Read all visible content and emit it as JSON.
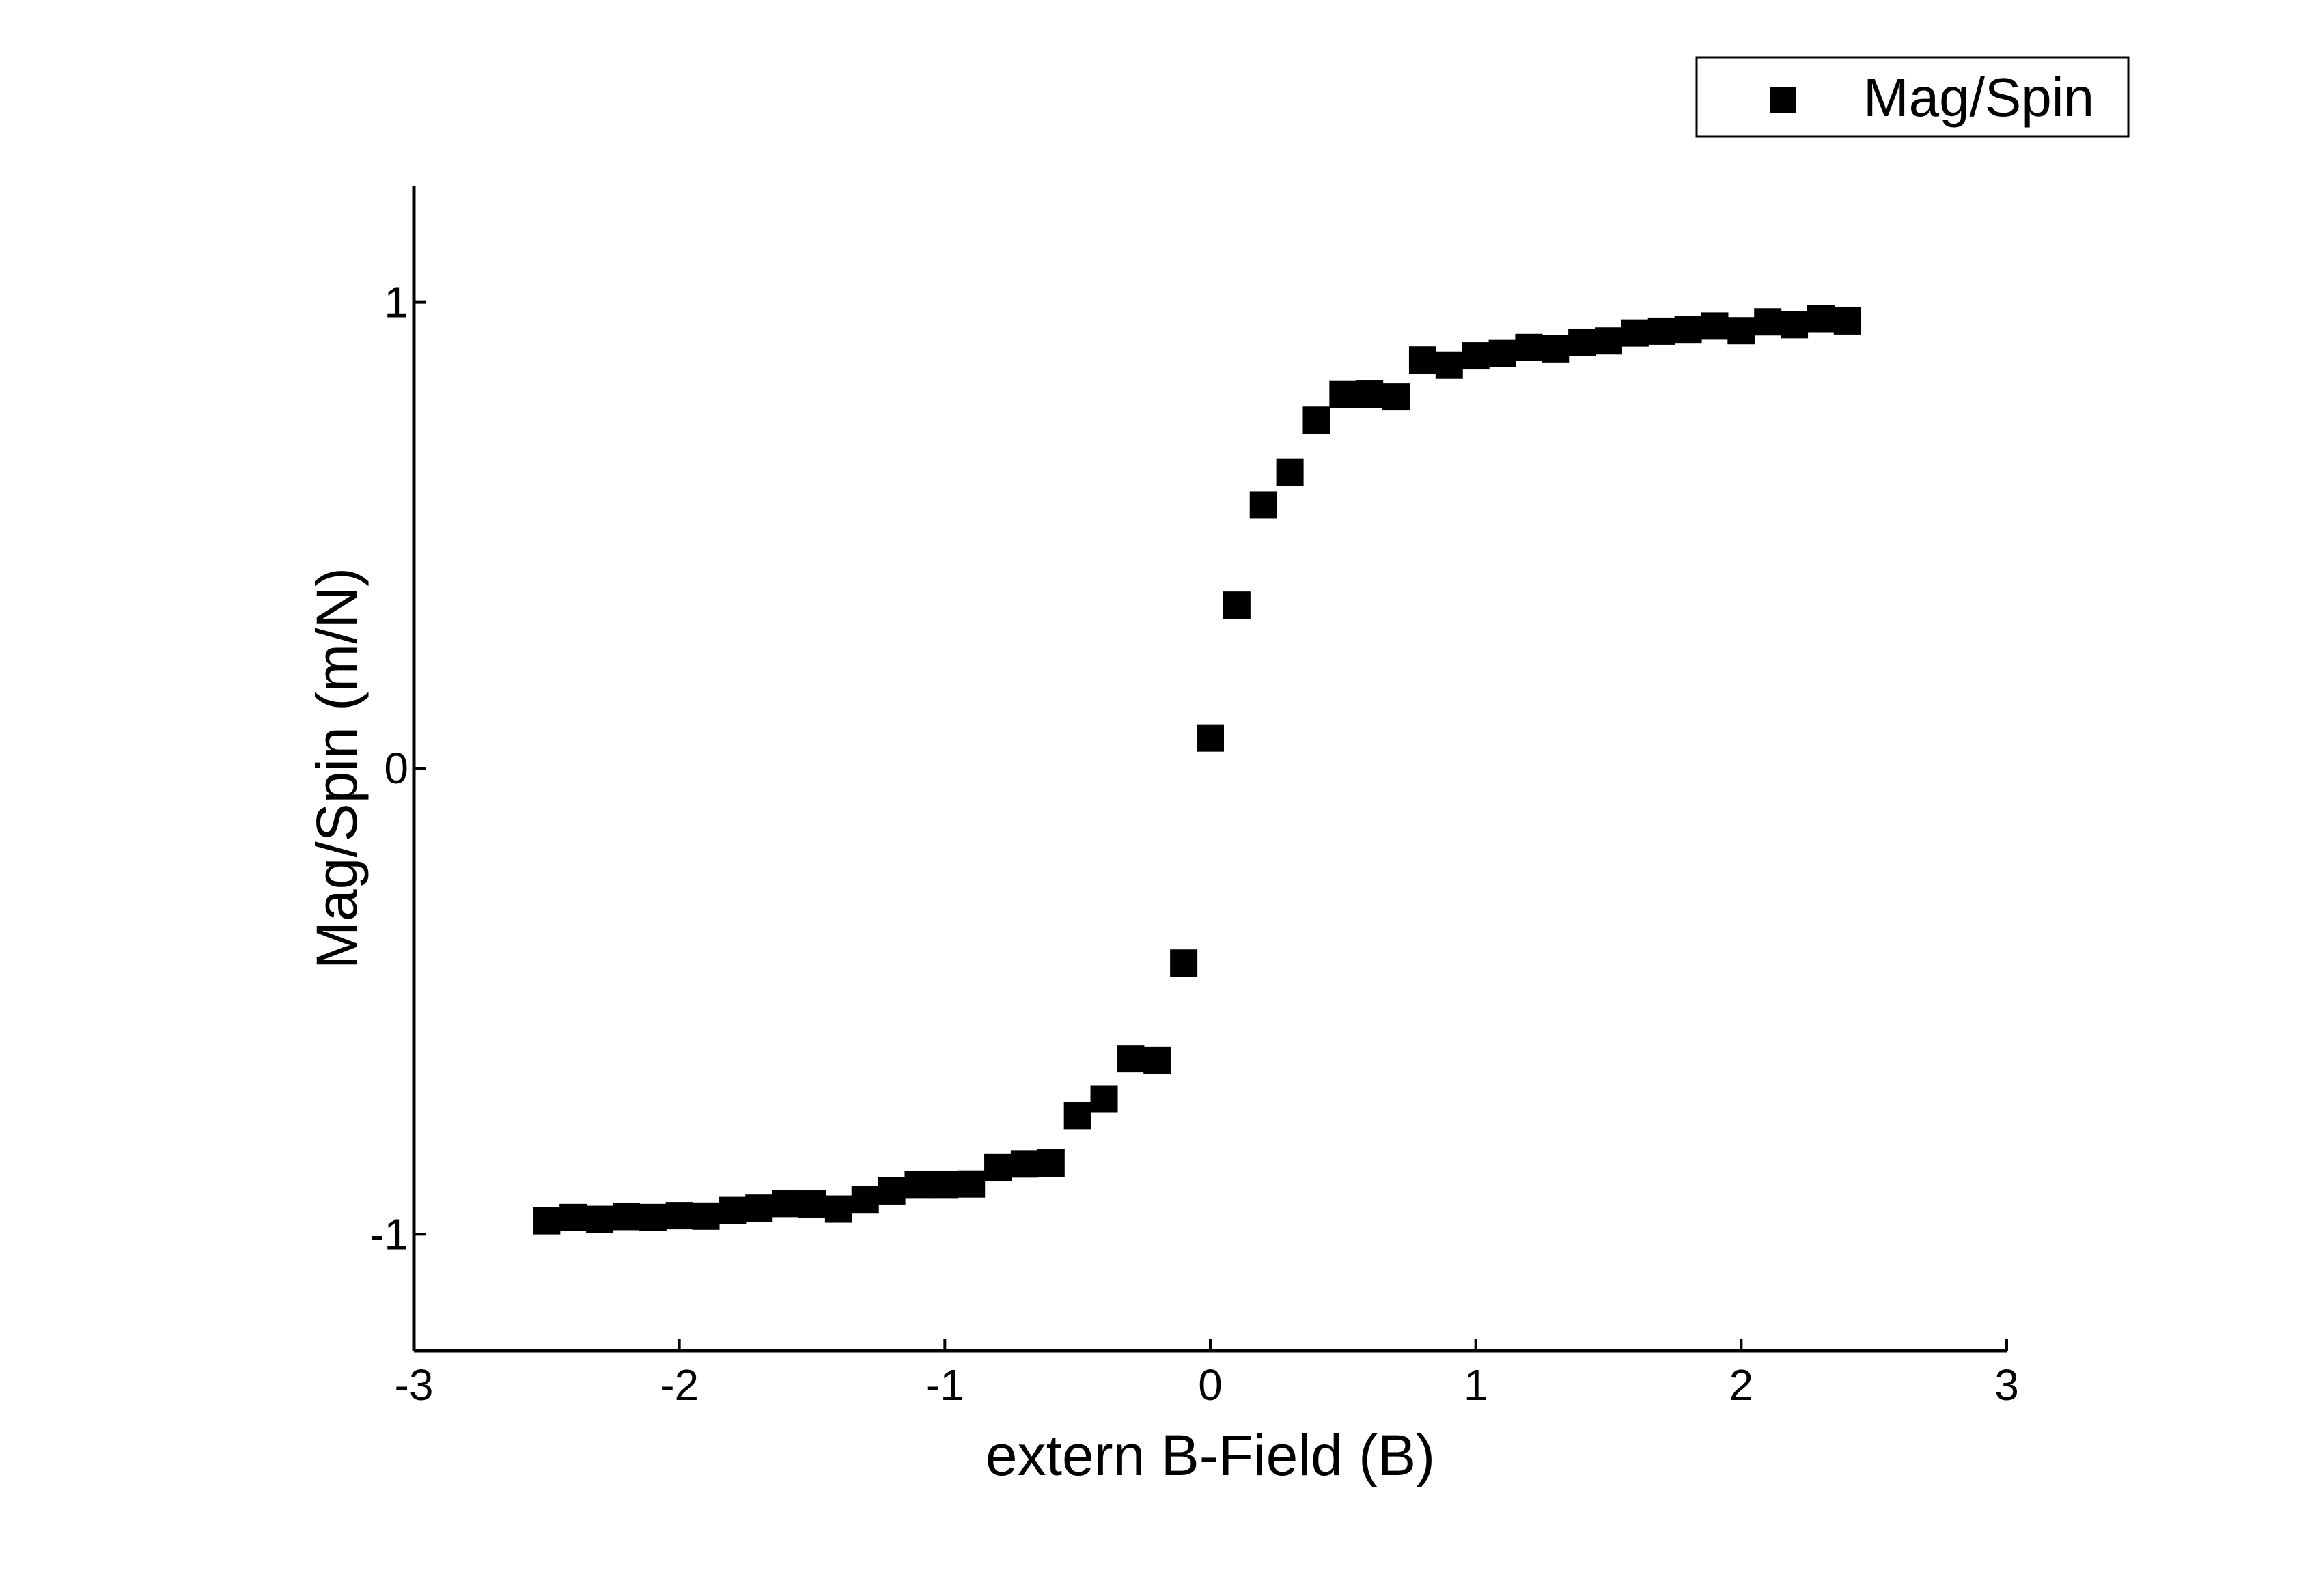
{
  "chart_data": {
    "type": "scatter",
    "title": "",
    "xlabel": "extern B-Field (B)",
    "ylabel": "Mag/Spin (m/N)",
    "xlim": [
      -3,
      3
    ],
    "ylim": [
      -1.25,
      1.25
    ],
    "xticks": [
      -3,
      -2,
      -1,
      0,
      1,
      2,
      3
    ],
    "xtick_labels": [
      "-3",
      "-2",
      "-1",
      "0",
      "1",
      "2",
      "3"
    ],
    "yticks": [
      -1,
      0,
      1
    ],
    "ytick_labels": [
      "-1",
      "0",
      "1"
    ],
    "grid": false,
    "legend": "top-right",
    "marker": "square",
    "color": "#000000",
    "series": [
      {
        "name": "Mag/Spin",
        "x": [
          -2.5,
          -2.4,
          -2.3,
          -2.2,
          -2.1,
          -2.0,
          -1.9,
          -1.8,
          -1.7,
          -1.6,
          -1.5,
          -1.4,
          -1.3,
          -1.2,
          -1.1,
          -1.0,
          -0.9,
          -0.8,
          -0.7,
          -0.6,
          -0.5,
          -0.4,
          -0.3,
          -0.2,
          -0.1,
          0.0,
          0.1,
          0.2,
          0.3,
          0.4,
          0.5,
          0.6,
          0.7,
          0.8,
          0.9,
          1.0,
          1.1,
          1.2,
          1.3,
          1.4,
          1.5,
          1.6,
          1.7,
          1.8,
          1.9,
          2.0,
          2.1,
          2.2,
          2.3,
          2.4
        ],
        "y": [
          -0.971,
          -0.964,
          -0.968,
          -0.962,
          -0.964,
          -0.96,
          -0.961,
          -0.949,
          -0.944,
          -0.934,
          -0.935,
          -0.946,
          -0.925,
          -0.907,
          -0.893,
          -0.893,
          -0.892,
          -0.857,
          -0.849,
          -0.847,
          -0.745,
          -0.71,
          -0.623,
          -0.627,
          -0.418,
          0.065,
          0.35,
          0.565,
          0.635,
          0.747,
          0.802,
          0.803,
          0.797,
          0.876,
          0.865,
          0.885,
          0.89,
          0.903,
          0.9,
          0.913,
          0.917,
          0.934,
          0.938,
          0.942,
          0.949,
          0.939,
          0.958,
          0.952,
          0.965,
          0.96
        ]
      }
    ]
  }
}
